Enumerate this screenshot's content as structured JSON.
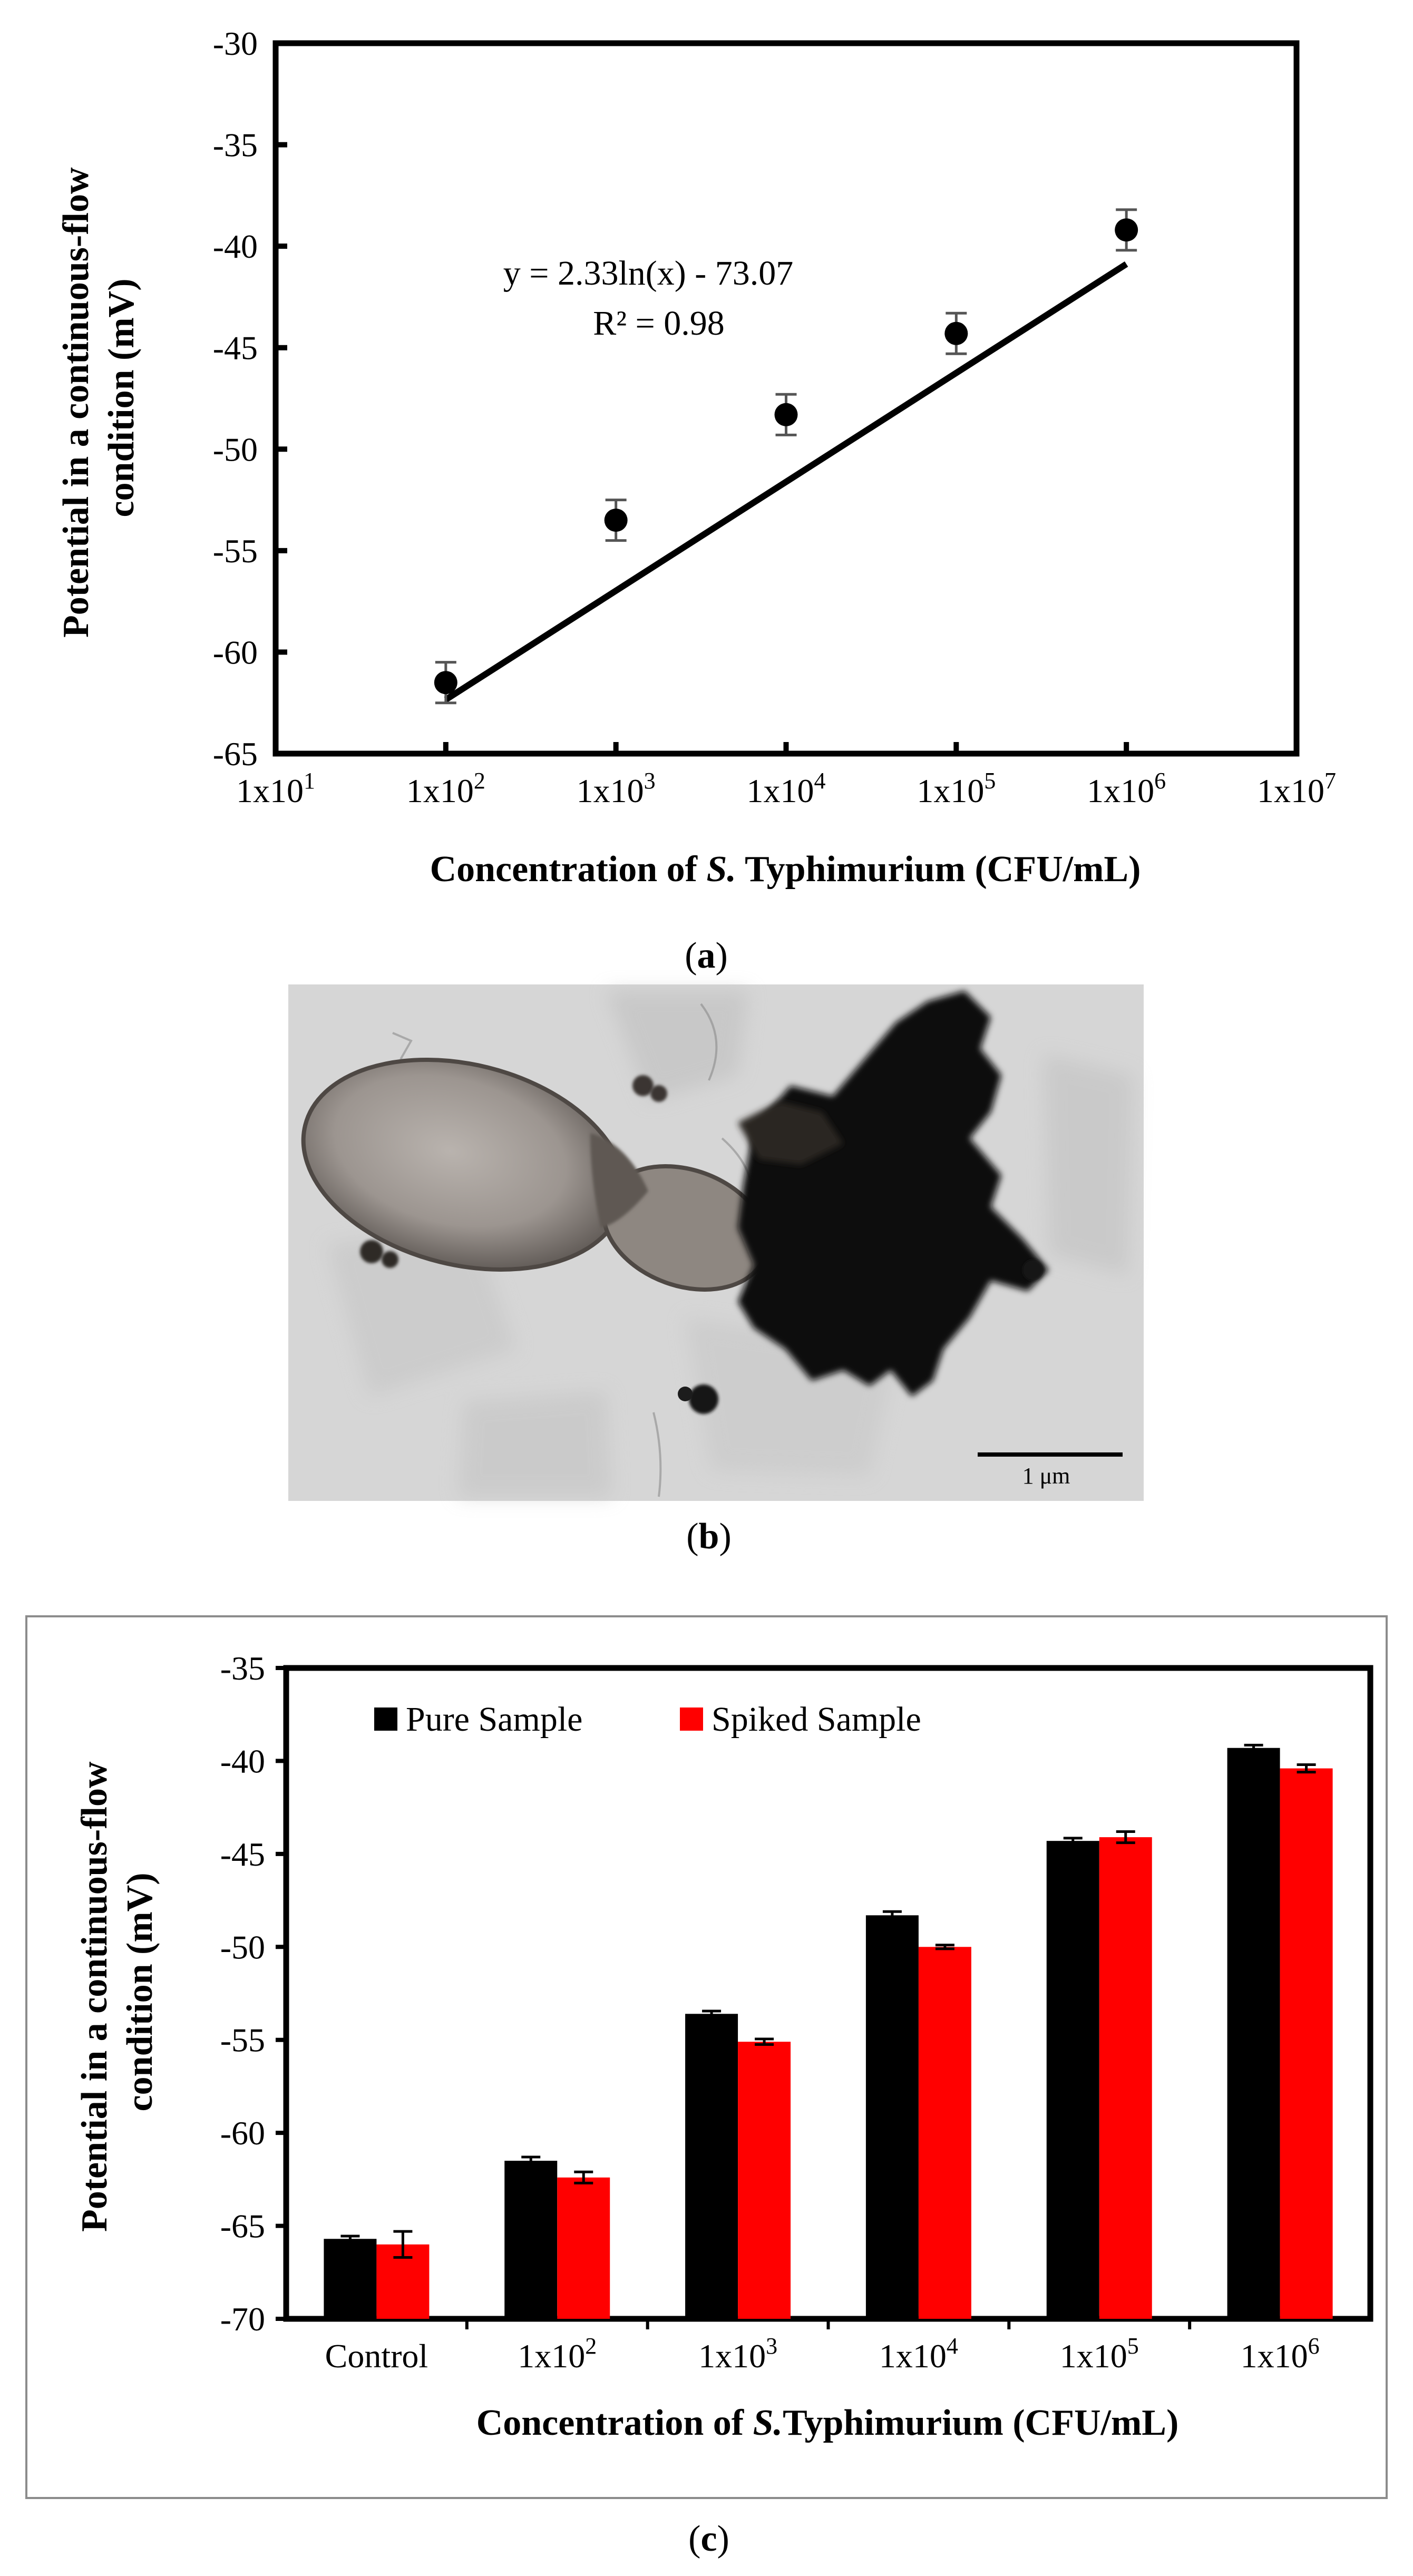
{
  "chart_data": [
    {
      "panel": "a",
      "type": "scatter",
      "title": "",
      "ylabel_line1": "Potential in a continuous-flow",
      "ylabel_line2": "condition (mV)",
      "xlabel": {
        "prefix": "Concentration of ",
        "italic": "S.",
        "suffix": " Typhimurium (CFU/mL)"
      },
      "xscale": "log10",
      "xlim": [
        10,
        10000000
      ],
      "ylim": [
        -65,
        -30
      ],
      "xticks": [
        {
          "value": 10,
          "base": "1x10",
          "exp": "1"
        },
        {
          "value": 100,
          "base": "1x10",
          "exp": "2"
        },
        {
          "value": 1000,
          "base": "1x10",
          "exp": "3"
        },
        {
          "value": 10000,
          "base": "1x10",
          "exp": "4"
        },
        {
          "value": 100000,
          "base": "1x10",
          "exp": "5"
        },
        {
          "value": 1000000,
          "base": "1x10",
          "exp": "6"
        },
        {
          "value": 10000000,
          "base": "1x10",
          "exp": "7"
        }
      ],
      "yticks": [
        -30,
        -35,
        -40,
        -45,
        -50,
        -55,
        -60,
        -65
      ],
      "points": [
        {
          "x": 100,
          "y": -61.5,
          "err": 1.0
        },
        {
          "x": 1000,
          "y": -53.5,
          "err": 1.0
        },
        {
          "x": 10000,
          "y": -48.3,
          "err": 1.0
        },
        {
          "x": 100000,
          "y": -44.3,
          "err": 1.0
        },
        {
          "x": 1000000,
          "y": -39.2,
          "err": 1.0
        }
      ],
      "fit": {
        "a": 2.33,
        "b": -73.07,
        "x_start": 100,
        "x_end": 1000000
      },
      "equation": "y = 2.33ln(x) - 73.07",
      "r2": "R² = 0.98",
      "caption": "a"
    },
    {
      "panel": "c",
      "type": "bar",
      "title": "",
      "ylabel_line1": "Potential in a continuous-flow",
      "ylabel_line2": "condition (mV)",
      "xlabel": {
        "prefix": "Concentration of ",
        "italic": "S.",
        "suffix": "Typhimurium (CFU/mL)"
      },
      "ylim": [
        -70,
        -35
      ],
      "yticks": [
        -35,
        -40,
        -45,
        -50,
        -55,
        -60,
        -65,
        -70
      ],
      "categories": [
        {
          "base": "Control",
          "exp": ""
        },
        {
          "base": "1x10",
          "exp": "2"
        },
        {
          "base": "1x10",
          "exp": "3"
        },
        {
          "base": "1x10",
          "exp": "4"
        },
        {
          "base": "1x10",
          "exp": "5"
        },
        {
          "base": "1x10",
          "exp": "6"
        }
      ],
      "series": [
        {
          "name": "Pure Sample",
          "color": "#000000",
          "values": [
            -65.7,
            -61.5,
            -53.6,
            -48.3,
            -44.3,
            -39.3
          ],
          "errors": [
            0.15,
            0.2,
            0.15,
            0.2,
            0.15,
            0.15
          ]
        },
        {
          "name": "Spiked Sample",
          "color": "#ff0000",
          "values": [
            -66.0,
            -62.4,
            -55.1,
            -50.0,
            -44.1,
            -40.4
          ],
          "errors": [
            0.7,
            0.3,
            0.15,
            0.1,
            0.3,
            0.2
          ]
        }
      ],
      "legend_position": "top-left",
      "caption": "c"
    }
  ],
  "micrograph": {
    "scale_bar_label": "1 μm",
    "caption": "b"
  }
}
